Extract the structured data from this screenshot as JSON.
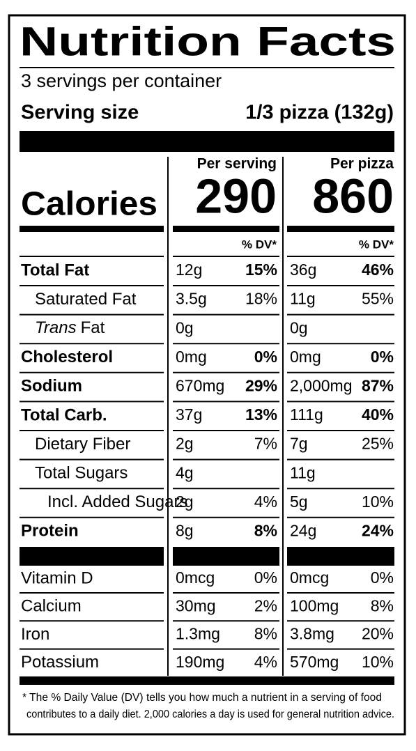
{
  "header": {
    "title": "Nutrition Facts",
    "servings": "3 servings per container",
    "serving_size_label": "Serving size",
    "serving_size_value": "1/3 pizza (132g)"
  },
  "columns": [
    "Per serving",
    "Per pizza"
  ],
  "calories": {
    "label": "Calories",
    "values": [
      "290",
      "860"
    ]
  },
  "dv_header": [
    "% DV*",
    "% DV*"
  ],
  "nutrients": [
    {
      "name": "Total Fat",
      "bold": true,
      "level": 0,
      "amounts": [
        "12g",
        "36g"
      ],
      "dv": [
        "15%",
        "46%"
      ]
    },
    {
      "name": "Saturated Fat",
      "bold": false,
      "level": 1,
      "amounts": [
        "3.5g",
        "11g"
      ],
      "dv": [
        "18%",
        "55%"
      ]
    },
    {
      "name_italic": "Trans",
      "name": "Fat",
      "bold": false,
      "level": 1,
      "amounts": [
        "0g",
        "0g"
      ],
      "dv": [
        null,
        null
      ]
    },
    {
      "name": "Cholesterol",
      "bold": true,
      "level": 0,
      "amounts": [
        "0mg",
        "0mg"
      ],
      "dv": [
        "0%",
        "0%"
      ]
    },
    {
      "name": "Sodium",
      "bold": true,
      "level": 0,
      "amounts": [
        "670mg",
        "2,000mg"
      ],
      "dv": [
        "29%",
        "87%"
      ]
    },
    {
      "name": "Total Carb.",
      "bold": true,
      "level": 0,
      "amounts": [
        "37g",
        "111g"
      ],
      "dv": [
        "13%",
        "40%"
      ]
    },
    {
      "name": "Dietary Fiber",
      "bold": false,
      "level": 1,
      "amounts": [
        "2g",
        "7g"
      ],
      "dv": [
        "7%",
        "25%"
      ]
    },
    {
      "name": "Total Sugars",
      "bold": false,
      "level": 1,
      "amounts": [
        "4g",
        "11g"
      ],
      "dv": [
        null,
        null
      ]
    },
    {
      "name": "Incl. Added Sugars",
      "bold": false,
      "level": 2,
      "amounts": [
        "2g",
        "5g"
      ],
      "dv": [
        "4%",
        "10%"
      ]
    },
    {
      "name": "Protein",
      "bold": true,
      "level": 0,
      "amounts": [
        "8g",
        "24g"
      ],
      "dv": [
        "8%",
        "24%"
      ]
    }
  ],
  "vitamins": [
    {
      "name": "Vitamin D",
      "amounts": [
        "0mcg",
        "0mcg"
      ],
      "dv": [
        "0%",
        "0%"
      ]
    },
    {
      "name": "Calcium",
      "amounts": [
        "30mg",
        "100mg"
      ],
      "dv": [
        "2%",
        "8%"
      ]
    },
    {
      "name": "Iron",
      "amounts": [
        "1.3mg",
        "3.8mg"
      ],
      "dv": [
        "8%",
        "20%"
      ]
    },
    {
      "name": "Potassium",
      "amounts": [
        "190mg",
        "570mg"
      ],
      "dv": [
        "4%",
        "10%"
      ]
    }
  ],
  "footnote": [
    "* The % Daily Value (DV) tells you how much a nutrient in a serving of food",
    "contributes to a daily diet. 2,000 calories a day is used for general nutrition advice."
  ]
}
